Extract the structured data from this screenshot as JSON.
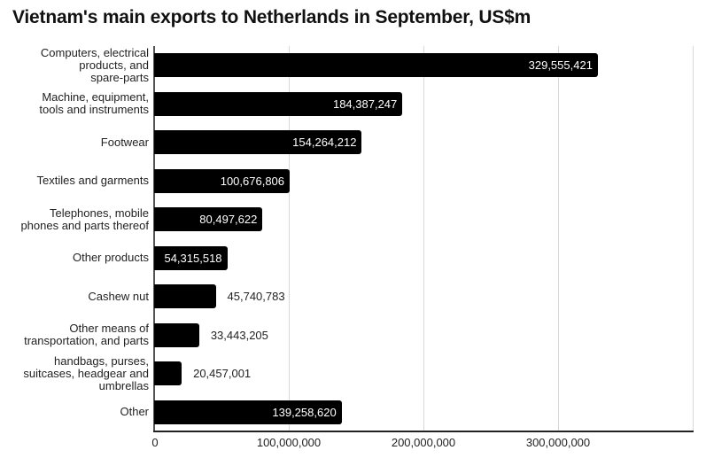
{
  "chart_data": {
    "type": "bar",
    "orientation": "horizontal",
    "title": "Vietnam's main exports to Netherlands in September, US$m",
    "xlabel": "",
    "ylabel": "",
    "xlim": [
      0,
      400000000
    ],
    "grid": true,
    "legend": null,
    "x_ticks": [
      "0",
      "100,000,000",
      "200,000,000",
      "300,000,000"
    ],
    "categories": [
      "Computers, electrical products, and spare-parts",
      "Machine, equipment, tools and instruments",
      "Footwear",
      "Textiles and garments",
      "Telephones, mobile phones and parts thereof",
      "Other products",
      "Cashew nut",
      "Other means of transportation, and parts",
      "handbags, purses, suitcases, headgear and umbrellas",
      "Other"
    ],
    "values": [
      329555421,
      184387247,
      154264212,
      100676806,
      80497622,
      54315518,
      45740783,
      33443205,
      20457001,
      139258620
    ],
    "labels": [
      "329,555,421",
      "184,387,247",
      "154,264,212",
      "100,676,806",
      "80,497,622",
      "54,315,518",
      "45,740,783",
      "33,443,205",
      "20,457,001",
      "139,258,620"
    ],
    "bar_color": "#000000"
  },
  "title": "Vietnam's main exports to Netherlands in September, US$m",
  "cat_lines": [
    [
      "Computers, electrical",
      "products, and",
      "spare-parts"
    ],
    [
      "Machine, equipment,",
      "tools and instruments"
    ],
    [
      "Footwear"
    ],
    [
      "Textiles and garments"
    ],
    [
      "Telephones, mobile",
      "phones and parts thereof"
    ],
    [
      "Other products"
    ],
    [
      "Cashew nut"
    ],
    [
      "Other means of",
      "transportation, and parts"
    ],
    [
      "handbags, purses,",
      "suitcases, headgear and",
      "umbrellas"
    ],
    [
      "Other"
    ]
  ]
}
